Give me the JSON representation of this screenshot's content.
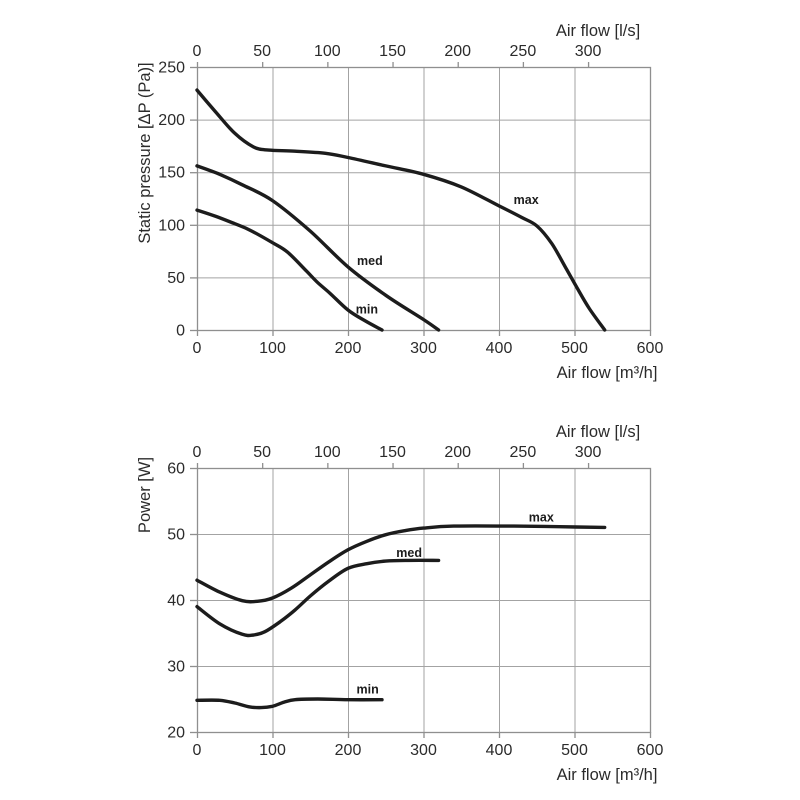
{
  "page": {
    "background": "#ffffff"
  },
  "styles": {
    "curve_color": "#1c1c1c",
    "grid_color": "#a3a3a3",
    "axis_color": "#8f8f8f",
    "text_color": "#2b2b2b",
    "label_color": "#1c1c1c"
  },
  "chart_data": [
    {
      "type": "line",
      "xlabel": "Air flow [m³/h]",
      "ylabel": "Static pressure [ΔP (Pa)]",
      "xlim": [
        0,
        600
      ],
      "ylim": [
        0,
        250
      ],
      "xticks": [
        0,
        100,
        200,
        300,
        400,
        500,
        600
      ],
      "yticks": [
        0,
        50,
        100,
        150,
        200,
        250
      ],
      "grid": true,
      "legend_position": "inline-labels",
      "top_axis": {
        "label": "Air flow [l/s]",
        "ticks": [
          0,
          50,
          100,
          150,
          200,
          250,
          300
        ],
        "m3h_per_unit": 1.7266
      },
      "series": [
        {
          "name": "max",
          "label_at": [
            436,
            124
          ],
          "points": [
            [
              0,
              228
            ],
            [
              25,
              207
            ],
            [
              50,
              187
            ],
            [
              75,
              174
            ],
            [
              95,
              171
            ],
            [
              130,
              170
            ],
            [
              170,
              168
            ],
            [
              200,
              164
            ],
            [
              250,
              156
            ],
            [
              300,
              148
            ],
            [
              350,
              136
            ],
            [
              400,
              118
            ],
            [
              430,
              107
            ],
            [
              450,
              99
            ],
            [
              470,
              82
            ],
            [
              490,
              57
            ],
            [
              505,
              38
            ],
            [
              520,
              20
            ],
            [
              540,
              0
            ]
          ]
        },
        {
          "name": "med",
          "label_at": [
            229,
            66
          ],
          "points": [
            [
              0,
              156
            ],
            [
              30,
              148
            ],
            [
              60,
              138
            ],
            [
              100,
              123
            ],
            [
              150,
              94
            ],
            [
              200,
              60
            ],
            [
              250,
              33
            ],
            [
              300,
              10
            ],
            [
              320,
              0
            ]
          ]
        },
        {
          "name": "min",
          "label_at": [
            225,
            20
          ],
          "points": [
            [
              0,
              114
            ],
            [
              25,
              108
            ],
            [
              50,
              101
            ],
            [
              70,
              95
            ],
            [
              100,
              83
            ],
            [
              120,
              74
            ],
            [
              145,
              56
            ],
            [
              160,
              45
            ],
            [
              176,
              35
            ],
            [
              200,
              19
            ],
            [
              222,
              9
            ],
            [
              245,
              0
            ]
          ]
        }
      ]
    },
    {
      "type": "line",
      "xlabel": "Air flow [m³/h]",
      "ylabel": "Power [W]",
      "xlim": [
        0,
        600
      ],
      "ylim": [
        20,
        60
      ],
      "xticks": [
        0,
        100,
        200,
        300,
        400,
        500,
        600
      ],
      "yticks": [
        20,
        30,
        40,
        50,
        60
      ],
      "grid": true,
      "legend_position": "inline-labels",
      "top_axis": {
        "label": "Air flow [l/s]",
        "ticks": [
          0,
          50,
          100,
          150,
          200,
          250,
          300
        ],
        "m3h_per_unit": 1.7266
      },
      "series": [
        {
          "name": "max",
          "label_at": [
            456,
            52.6
          ],
          "points": [
            [
              0,
              43
            ],
            [
              30,
              41.2
            ],
            [
              60,
              39.9
            ],
            [
              80,
              39.8
            ],
            [
              100,
              40.3
            ],
            [
              125,
              41.8
            ],
            [
              150,
              43.8
            ],
            [
              175,
              45.8
            ],
            [
              200,
              47.6
            ],
            [
              225,
              48.9
            ],
            [
              250,
              49.9
            ],
            [
              275,
              50.5
            ],
            [
              300,
              50.9
            ],
            [
              340,
              51.2
            ],
            [
              420,
              51.2
            ],
            [
              480,
              51.1
            ],
            [
              540,
              51
            ]
          ]
        },
        {
          "name": "med",
          "label_at": [
            281,
            47.2
          ],
          "points": [
            [
              0,
              39
            ],
            [
              30,
              36.4
            ],
            [
              60,
              34.8
            ],
            [
              75,
              34.7
            ],
            [
              90,
              35.2
            ],
            [
              110,
              36.7
            ],
            [
              130,
              38.5
            ],
            [
              150,
              40.6
            ],
            [
              175,
              42.9
            ],
            [
              200,
              44.8
            ],
            [
              225,
              45.5
            ],
            [
              250,
              45.9
            ],
            [
              280,
              46
            ],
            [
              320,
              46
            ]
          ]
        },
        {
          "name": "min",
          "label_at": [
            226,
            26.5
          ],
          "points": [
            [
              0,
              24.8
            ],
            [
              30,
              24.8
            ],
            [
              50,
              24.4
            ],
            [
              70,
              23.8
            ],
            [
              85,
              23.7
            ],
            [
              100,
              23.9
            ],
            [
              115,
              24.5
            ],
            [
              130,
              24.9
            ],
            [
              160,
              25
            ],
            [
              200,
              24.9
            ],
            [
              245,
              24.9
            ]
          ]
        }
      ]
    }
  ]
}
